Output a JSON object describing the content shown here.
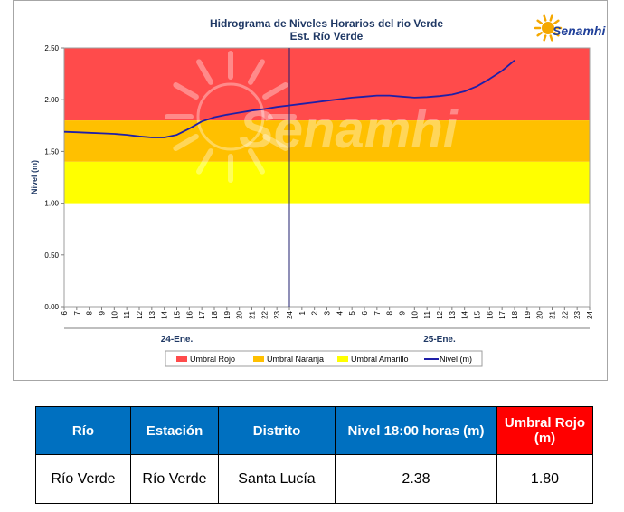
{
  "chart_data": {
    "type": "line",
    "title": "Hidrograma de Niveles Horarios del rio Verde",
    "subtitle": "Est. Río Verde",
    "ylabel": "Nivel (m)",
    "xlabel": "",
    "ylim": [
      0,
      2.5
    ],
    "yticks": [
      "0.00",
      "0.50",
      "1.00",
      "1.50",
      "2.00",
      "2.50"
    ],
    "x_hour_labels": [
      "6",
      "7",
      "8",
      "9",
      "10",
      "11",
      "12",
      "13",
      "14",
      "15",
      "16",
      "17",
      "18",
      "19",
      "20",
      "21",
      "22",
      "23",
      "24",
      "1",
      "2",
      "3",
      "4",
      "5",
      "6",
      "7",
      "8",
      "9",
      "10",
      "11",
      "12",
      "13",
      "14",
      "15",
      "16",
      "17",
      "18",
      "19",
      "20",
      "21",
      "22",
      "23",
      "24"
    ],
    "day_labels": [
      "24-Ene.",
      "25-Ene."
    ],
    "thresholds": [
      {
        "name": "Umbral Rojo",
        "from": 1.8,
        "to": 2.5,
        "color": "#ff4b4b"
      },
      {
        "name": "Umbral Naranja",
        "from": 1.4,
        "to": 1.8,
        "color": "#ffc000"
      },
      {
        "name": "Umbral Amarillo",
        "from": 1.0,
        "to": 1.4,
        "color": "#ffff00"
      }
    ],
    "series": [
      {
        "name": "Nivel (m)",
        "color": "#1f1fa8",
        "values": [
          1.69,
          1.685,
          1.68,
          1.675,
          1.67,
          1.66,
          1.645,
          1.635,
          1.635,
          1.66,
          1.72,
          1.79,
          1.83,
          1.855,
          1.875,
          1.895,
          1.91,
          1.93,
          1.945,
          1.96,
          1.975,
          1.99,
          2.005,
          2.02,
          2.03,
          2.04,
          2.04,
          2.03,
          2.02,
          2.025,
          2.035,
          2.05,
          2.08,
          2.13,
          2.2,
          2.28,
          2.38
        ]
      }
    ],
    "legend": [
      "Umbral Rojo",
      "Umbral Naranja",
      "Umbral Amarillo",
      "Nivel (m)"
    ],
    "legend_position": "bottom",
    "grid": false
  },
  "logo": {
    "text": "Senamhi",
    "watermark": "Senamhi"
  },
  "table": {
    "headers": [
      "Río",
      "Estación",
      "Distrito",
      "Nivel 18:00 horas (m)",
      "Umbral Rojo (m)"
    ],
    "row": [
      "Río Verde",
      "Río Verde",
      "Santa Lucía",
      "2.38",
      "1.80"
    ]
  }
}
